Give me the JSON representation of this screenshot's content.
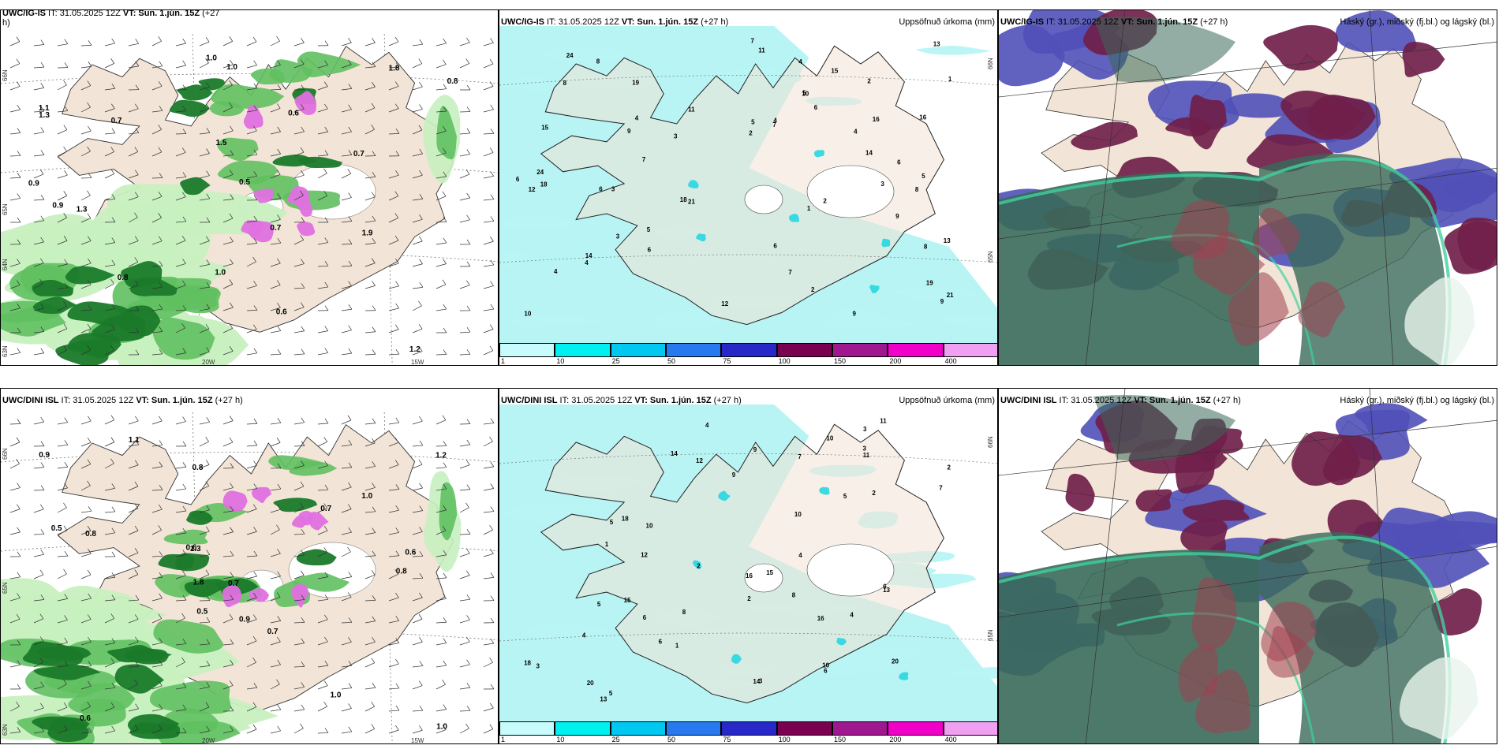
{
  "panels": [
    {
      "id": "p1",
      "title_model": "UWC/IG-IS",
      "title_it": " IT: 31.05.2025 12Z ",
      "title_vt": "VT: Sun. 1.jún. 15Z",
      "title_lead": " (+27",
      "title_lead2": "h)",
      "right_label": "",
      "labels": [
        "0.9",
        "1.0",
        "0.7",
        "0.8",
        "1.1",
        "1.2",
        "1.3",
        "0.6",
        "1.5",
        "1.8",
        "0.5",
        "1.9",
        "1.0",
        "1.3",
        "0.7",
        "0.8",
        "0.6",
        "0.9",
        "0.7",
        "1.0"
      ],
      "lon_labels": [
        "20W",
        "15W"
      ],
      "lat_labels": [
        "66N",
        "65N",
        "63N",
        "64N"
      ]
    },
    {
      "id": "p2",
      "title_model": "UWC/IG-IS",
      "title_it": " IT: 31.05.2025 12Z ",
      "title_vt": "VT: Sun. 1.jún. 15Z",
      "title_lead": " (+27 h)",
      "right_label": "Uppsöfnuð úrkoma (mm)",
      "labels": [
        "2",
        "3",
        "1",
        "2",
        "4",
        "5",
        "6",
        "4",
        "7",
        "5",
        "8",
        "9",
        "6",
        "3",
        "4",
        "12",
        "10",
        "14",
        "15",
        "8",
        "9",
        "21",
        "19",
        "16",
        "11",
        "18",
        "13",
        "24",
        "7",
        "6"
      ],
      "lat_labels": [
        "66N",
        "65N"
      ]
    },
    {
      "id": "p3",
      "title_model": "UWC/IG-IS",
      "title_it": " IT: 31.05.2025 12Z ",
      "title_vt": "VT: Sun. 1.jún. 15Z",
      "title_lead": " (+27 h)",
      "right_label": "Háský (gr.), miðský (fj.bl.) og lágský (bl.)"
    },
    {
      "id": "p4",
      "title_model": "UWC/DINI ISL",
      "title_it": " IT: 31.05.2025 12Z ",
      "title_vt": "VT: Sun. 1.jún. 15Z",
      "title_lead": " (+27 h)",
      "right_label": "",
      "labels": [
        "1.0",
        "0.7",
        "0.8",
        "1.1",
        "1.3",
        "0.7",
        "0.6",
        "0.5",
        "1.0",
        "0.9",
        "0.8",
        "0.6",
        "1.2",
        "0.5",
        "0.7",
        "0.9",
        "1.8",
        "1.0",
        "0.6",
        "0.8"
      ],
      "lon_labels": [
        "20W",
        "15W"
      ],
      "lat_labels": [
        "66N",
        "65N",
        "63N"
      ]
    },
    {
      "id": "p5",
      "title_model": "UWC/DINI ISL",
      "title_it": " IT: 31.05.2025 12Z ",
      "title_vt": "VT: Sun. 1.jún. 15Z",
      "title_lead": " (+27 h)",
      "right_label": "Uppsöfnuð úrkoma (mm)",
      "labels": [
        "3",
        "1",
        "10",
        "2",
        "4",
        "5",
        "6",
        "8",
        "3",
        "7",
        "9",
        "14",
        "16",
        "15",
        "18",
        "20",
        "13",
        "11",
        "12",
        "10",
        "6",
        "4",
        "2",
        "5"
      ],
      "lat_labels": [
        "66N",
        "65N"
      ]
    },
    {
      "id": "p6",
      "title_model": "UWC/DINI ISL",
      "title_it": " IT: 31.05.2025 12Z ",
      "title_vt": "VT: Sun. 1.jún. 15Z",
      "title_lead": " (+27 h)",
      "right_label": "Háský (gr.), miðský (fj.bl.) og lágský (bl.)"
    }
  ],
  "precip_legend": {
    "colors": [
      "#c8fcfc",
      "#00f0f0",
      "#00c8f0",
      "#2878f0",
      "#2828c8",
      "#7a0050",
      "#a01890",
      "#f000c8",
      "#f0a0f0"
    ],
    "labels": [
      "1",
      "10",
      "25",
      "50",
      "75",
      "100",
      "150",
      "200",
      "400"
    ]
  },
  "colors": {
    "land": "#f2e4d6",
    "green_light": "#c8f0c0",
    "green_mid": "#60c060",
    "green_dark": "#1a7a2a",
    "magenta": "#e070e0",
    "cyan_light": "#b8f4f4",
    "cloud_high": "#3a6a5a",
    "cloud_mid": "#70204a",
    "cloud_low": "#5050b8",
    "cloud_teal": "#40d0a0"
  }
}
